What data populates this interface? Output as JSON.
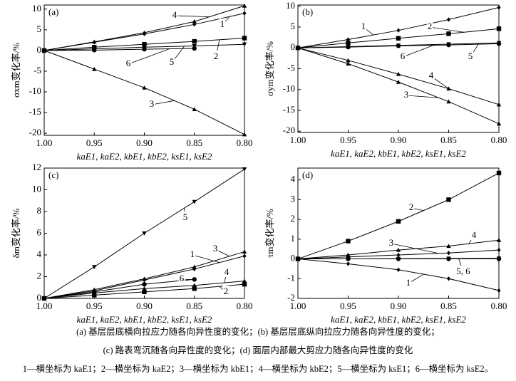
{
  "chart_data": [
    {
      "type": "line",
      "panel_label": "(a)",
      "ylabel": "σxm变化率/%",
      "xlabel": "kaE1, kaE2, kbE1, kbE2, ksE1, ksE2",
      "x": [
        1.0,
        0.95,
        0.9,
        0.85,
        0.8
      ],
      "xlim": [
        1.0,
        0.8
      ],
      "xticks": [
        {
          "value": 1.0,
          "label": "1.00"
        },
        0.95,
        {
          "value": 0.9,
          "label": "0.90"
        },
        0.85,
        {
          "value": 0.8,
          "label": "0.80"
        }
      ],
      "ylim": [
        -20.5,
        11
      ],
      "yticks": [
        -20,
        -15,
        -10,
        -5,
        0,
        5,
        10
      ],
      "series": [
        {
          "name": "1",
          "color": "#000",
          "marker": "diamond",
          "values": [
            0,
            2,
            4,
            6.3,
            9
          ]
        },
        {
          "name": "2",
          "color": "#000",
          "marker": "square",
          "values": [
            0,
            0.8,
            1.5,
            2.2,
            3
          ]
        },
        {
          "name": "3",
          "color": "#000",
          "marker": "triangle",
          "values": [
            0,
            -4.5,
            -9,
            -14.2,
            -20.3
          ]
        },
        {
          "name": "4",
          "color": "#000",
          "marker": "triangle",
          "values": [
            0,
            2.1,
            4.3,
            7,
            10.8
          ]
        },
        {
          "name": "5",
          "color": "#000",
          "marker": "itriangle",
          "values": [
            0,
            0.4,
            0.8,
            1.1,
            1.5
          ]
        },
        {
          "name": "6",
          "color": "#000",
          "marker": "circle",
          "values": [
            0,
            0.1,
            0.3,
            0.5,
            null
          ]
        }
      ]
    },
    {
      "type": "line",
      "panel_label": "(b)",
      "ylabel": "σym变化率/%",
      "xlabel": "kaE1, kaE2, kbE1, kbE2, ksE1, ksE2",
      "x": [
        1.0,
        0.95,
        0.9,
        0.85,
        0.8
      ],
      "xlim": [
        1.0,
        0.8
      ],
      "xticks": [
        {
          "value": 1.0,
          "label": "1.00"
        },
        0.95,
        {
          "value": 0.9,
          "label": "0.90"
        },
        0.85,
        {
          "value": 0.8,
          "label": "0.80"
        }
      ],
      "ylim": [
        -20.3,
        10.3
      ],
      "yticks": [
        -20,
        -15,
        -10,
        -5,
        0,
        5,
        10
      ],
      "series": [
        {
          "name": "1",
          "color": "#000",
          "marker": "diamond",
          "values": [
            0,
            2,
            4.2,
            6.8,
            9.7
          ]
        },
        {
          "name": "2",
          "color": "#000",
          "marker": "square",
          "values": [
            0,
            1.2,
            2.3,
            3.4,
            4.6
          ]
        },
        {
          "name": "3",
          "color": "#000",
          "marker": "triangle",
          "values": [
            0,
            -3.8,
            -8.2,
            -12.9,
            -18.2
          ]
        },
        {
          "name": "4",
          "color": "#000",
          "marker": "triangle",
          "values": [
            0,
            -3,
            -6.3,
            -9.8,
            -13.6
          ]
        },
        {
          "name": "5",
          "color": "#000",
          "marker": "itriangle",
          "values": [
            0,
            0.3,
            0.6,
            0.9,
            1.2
          ]
        },
        {
          "name": "6",
          "color": "#000",
          "marker": "circle",
          "values": [
            0,
            0.2,
            0.5,
            0.7,
            1.0
          ]
        }
      ]
    },
    {
      "type": "line",
      "panel_label": "(c)",
      "ylabel": "δm变化率/%",
      "xlabel": "kaE1, kaE2, kbE1, kbE2, ksE1, ksE2",
      "x": [
        1.0,
        0.95,
        0.9,
        0.85,
        0.8
      ],
      "xlim": [
        1.0,
        0.8
      ],
      "xticks": [
        {
          "value": 1.0,
          "label": "1.00"
        },
        0.95,
        {
          "value": 0.9,
          "label": "0.90"
        },
        0.85,
        {
          "value": 0.8,
          "label": "0.80"
        }
      ],
      "ylim": [
        0,
        12
      ],
      "yticks": [
        0,
        2,
        4,
        6,
        8,
        10,
        12
      ],
      "series": [
        {
          "name": "1",
          "color": "#000",
          "marker": "diamond",
          "values": [
            0,
            0.7,
            1.7,
            2.7,
            3.9
          ]
        },
        {
          "name": "2",
          "color": "#000",
          "marker": "square",
          "values": [
            0,
            0.3,
            0.6,
            0.9,
            1.3
          ]
        },
        {
          "name": "3",
          "color": "#000",
          "marker": "triangle",
          "values": [
            0,
            0.8,
            1.8,
            2.9,
            4.3
          ]
        },
        {
          "name": "4",
          "color": "#000",
          "marker": "triangle",
          "values": [
            0,
            0.5,
            0.9,
            1.2,
            1.6
          ]
        },
        {
          "name": "5",
          "color": "#000",
          "marker": "itriangle",
          "values": [
            0,
            2.9,
            6,
            8.9,
            11.9
          ]
        },
        {
          "name": "6",
          "color": "#000",
          "marker": "circle",
          "values": [
            0,
            0.6,
            1.3,
            1.75,
            null
          ]
        }
      ]
    },
    {
      "type": "line",
      "panel_label": "(d)",
      "ylabel": "τm变化率/%",
      "xlabel": "kaE1, kaE2, kbE1, kbE2, ksE1, ksE2",
      "x": [
        1.0,
        0.95,
        0.9,
        0.85,
        0.8
      ],
      "xlim": [
        1.0,
        0.8
      ],
      "xticks": [
        {
          "value": 1.0,
          "label": "1.00"
        },
        0.95,
        {
          "value": 0.9,
          "label": "0.90"
        },
        0.85,
        {
          "value": 0.8,
          "label": "0.80"
        }
      ],
      "ylim": [
        -2,
        4.6
      ],
      "yticks": [
        -2,
        -1,
        0,
        1,
        2,
        3,
        4
      ],
      "annotations": [
        "5, 6"
      ],
      "series": [
        {
          "name": "1",
          "color": "#000",
          "marker": "diamond",
          "values": [
            0,
            -0.25,
            -0.55,
            -1.0,
            -1.6
          ]
        },
        {
          "name": "2",
          "color": "#000",
          "marker": "square",
          "values": [
            0,
            0.9,
            1.9,
            3.0,
            4.35
          ]
        },
        {
          "name": "3",
          "color": "#000",
          "marker": "diamond",
          "values": [
            0,
            0.1,
            0.2,
            0.3,
            0.45
          ]
        },
        {
          "name": "4",
          "color": "#000",
          "marker": "triangle",
          "values": [
            0,
            0.2,
            0.45,
            0.65,
            0.95
          ]
        },
        {
          "color": "#000",
          "marker": "itriangle",
          "values": [
            0,
            0,
            0.01,
            0.02,
            0.03
          ]
        },
        {
          "color": "#000",
          "marker": "circle",
          "values": [
            0,
            0,
            0,
            0,
            0
          ]
        }
      ]
    }
  ],
  "caption": [
    "(a)  基层层底横向拉应力随各向异性度的变化；(b)  基层层底纵向拉应力随各向异性度的变化；",
    "(c)  路表弯沉随各向异性度的变化；(d)  面层内部最大剪应力随各向异性度的变化",
    "1—横坐标为 kaE1；2—横坐标为 kaE2；3—横坐标为 kbE1；4—横坐标为 kbE2；5—横坐标为 ksE1；6—横坐标为 ksE2。"
  ]
}
